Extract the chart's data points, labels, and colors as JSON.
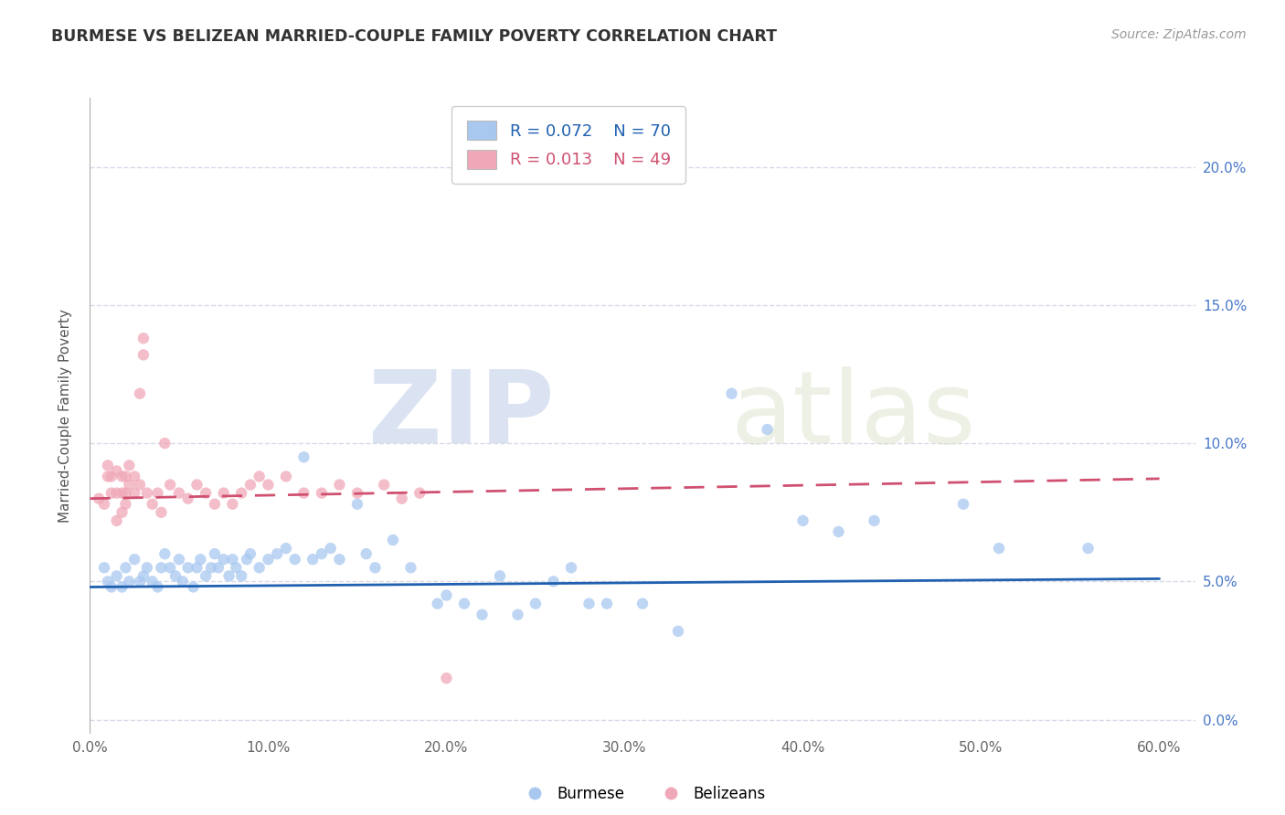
{
  "title": "BURMESE VS BELIZEAN MARRIED-COUPLE FAMILY POVERTY CORRELATION CHART",
  "source_text": "Source: ZipAtlas.com",
  "ylabel": "Married-Couple Family Poverty",
  "xlim": [
    0.0,
    0.62
  ],
  "ylim": [
    -0.005,
    0.225
  ],
  "xtick_vals": [
    0.0,
    0.1,
    0.2,
    0.3,
    0.4,
    0.5,
    0.6
  ],
  "xtick_labels": [
    "0.0%",
    "10.0%",
    "20.0%",
    "30.0%",
    "40.0%",
    "50.0%",
    "60.0%"
  ],
  "ytick_vals": [
    0.0,
    0.05,
    0.1,
    0.15,
    0.2
  ],
  "ytick_labels_right": [
    "0.0%",
    "5.0%",
    "10.0%",
    "15.0%",
    "20.0%"
  ],
  "burmese_color": "#a8c8f0",
  "belizean_color": "#f0a8b8",
  "burmese_line_color": "#2060b0",
  "belizean_line_color": "#d05070",
  "grid_color": "#d8d8e8",
  "legend_R_burmese": "R = 0.072",
  "legend_N_burmese": "N = 70",
  "legend_R_belizean": "R = 0.013",
  "legend_N_belizean": "N = 49",
  "watermark_zip": "ZIP",
  "watermark_atlas": "atlas",
  "burmese_x": [
    0.008,
    0.01,
    0.012,
    0.015,
    0.018,
    0.02,
    0.022,
    0.025,
    0.028,
    0.03,
    0.032,
    0.035,
    0.038,
    0.04,
    0.042,
    0.045,
    0.048,
    0.05,
    0.052,
    0.055,
    0.058,
    0.06,
    0.062,
    0.065,
    0.068,
    0.07,
    0.072,
    0.075,
    0.078,
    0.08,
    0.082,
    0.085,
    0.088,
    0.09,
    0.095,
    0.1,
    0.105,
    0.11,
    0.115,
    0.12,
    0.125,
    0.13,
    0.135,
    0.14,
    0.15,
    0.155,
    0.16,
    0.17,
    0.18,
    0.195,
    0.2,
    0.21,
    0.22,
    0.23,
    0.24,
    0.25,
    0.26,
    0.27,
    0.28,
    0.29,
    0.31,
    0.33,
    0.36,
    0.38,
    0.4,
    0.42,
    0.44,
    0.49,
    0.51,
    0.56
  ],
  "burmese_y": [
    0.055,
    0.05,
    0.048,
    0.052,
    0.048,
    0.055,
    0.05,
    0.058,
    0.05,
    0.052,
    0.055,
    0.05,
    0.048,
    0.055,
    0.06,
    0.055,
    0.052,
    0.058,
    0.05,
    0.055,
    0.048,
    0.055,
    0.058,
    0.052,
    0.055,
    0.06,
    0.055,
    0.058,
    0.052,
    0.058,
    0.055,
    0.052,
    0.058,
    0.06,
    0.055,
    0.058,
    0.06,
    0.062,
    0.058,
    0.095,
    0.058,
    0.06,
    0.062,
    0.058,
    0.078,
    0.06,
    0.055,
    0.065,
    0.055,
    0.042,
    0.045,
    0.042,
    0.038,
    0.052,
    0.038,
    0.042,
    0.05,
    0.055,
    0.042,
    0.042,
    0.042,
    0.032,
    0.118,
    0.105,
    0.072,
    0.068,
    0.072,
    0.078,
    0.062,
    0.062
  ],
  "belizean_x": [
    0.005,
    0.008,
    0.01,
    0.01,
    0.012,
    0.012,
    0.015,
    0.015,
    0.015,
    0.018,
    0.018,
    0.018,
    0.02,
    0.02,
    0.02,
    0.022,
    0.022,
    0.025,
    0.025,
    0.028,
    0.028,
    0.03,
    0.03,
    0.032,
    0.035,
    0.038,
    0.04,
    0.042,
    0.045,
    0.05,
    0.055,
    0.06,
    0.065,
    0.07,
    0.075,
    0.08,
    0.085,
    0.09,
    0.095,
    0.1,
    0.11,
    0.12,
    0.13,
    0.14,
    0.15,
    0.165,
    0.175,
    0.185,
    0.2
  ],
  "belizean_y": [
    0.08,
    0.078,
    0.088,
    0.092,
    0.088,
    0.082,
    0.09,
    0.082,
    0.072,
    0.088,
    0.082,
    0.075,
    0.088,
    0.082,
    0.078,
    0.092,
    0.085,
    0.088,
    0.082,
    0.085,
    0.118,
    0.132,
    0.138,
    0.082,
    0.078,
    0.082,
    0.075,
    0.1,
    0.085,
    0.082,
    0.08,
    0.085,
    0.082,
    0.078,
    0.082,
    0.078,
    0.082,
    0.085,
    0.088,
    0.085,
    0.088,
    0.082,
    0.082,
    0.085,
    0.082,
    0.085,
    0.08,
    0.082,
    0.015
  ]
}
